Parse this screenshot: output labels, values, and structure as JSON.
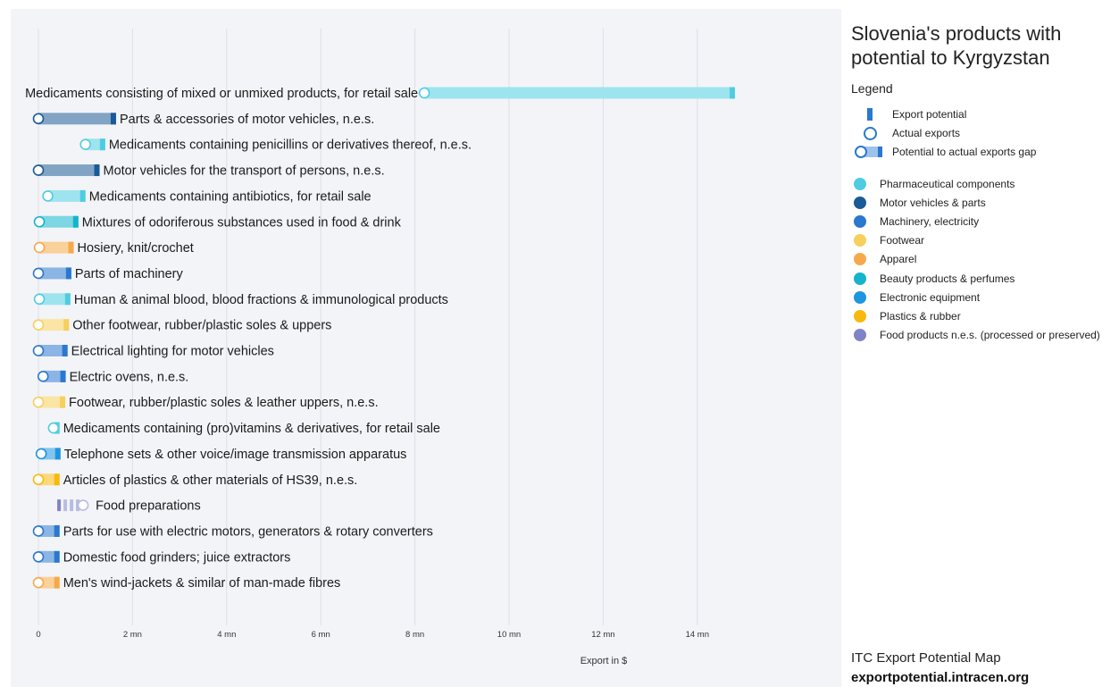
{
  "chart_data": {
    "type": "bar",
    "orientation": "horizontal",
    "title": "Slovenia's products with potential to Kyrgyzstan",
    "xlabel": "Export in $",
    "xlim": [
      0,
      16
    ],
    "xticks": [
      0,
      2,
      4,
      6,
      8,
      10,
      12,
      14
    ],
    "xtick_labels": [
      "0",
      "2 mn",
      "4 mn",
      "6 mn",
      "8 mn",
      "10 mn",
      "12 mn",
      "14 mn"
    ],
    "grid": true,
    "series": [
      {
        "name": "Export potential",
        "unit": "mn USD"
      },
      {
        "name": "Actual exports",
        "unit": "mn USD"
      }
    ],
    "rows": [
      {
        "label": "Medicaments consisting of mixed or unmixed products, for retail sale",
        "potential": 14.8,
        "actual": 8.2,
        "sector": "Pharmaceutical components"
      },
      {
        "label": "Parts & accessories of motor vehicles, n.e.s.",
        "potential": 1.65,
        "actual": 0.0,
        "sector": "Motor vehicles & parts"
      },
      {
        "label": "Medicaments containing penicillins or derivatives thereof, n.e.s.",
        "potential": 1.42,
        "actual": 1.0,
        "sector": "Pharmaceutical components"
      },
      {
        "label": "Motor vehicles for the transport of persons, n.e.s.",
        "potential": 1.3,
        "actual": 0.0,
        "sector": "Motor vehicles & parts"
      },
      {
        "label": "Medicaments containing antibiotics, for retail sale",
        "potential": 1.0,
        "actual": 0.2,
        "sector": "Pharmaceutical components"
      },
      {
        "label": "Mixtures of odoriferous substances used in food & drink",
        "potential": 0.85,
        "actual": 0.02,
        "sector": "Beauty products & perfumes"
      },
      {
        "label": "Hosiery, knit/crochet",
        "potential": 0.75,
        "actual": 0.02,
        "sector": "Apparel"
      },
      {
        "label": "Parts of machinery",
        "potential": 0.7,
        "actual": 0.0,
        "sector": "Machinery, electricity"
      },
      {
        "label": "Human & animal blood, blood fractions & immunological products",
        "potential": 0.68,
        "actual": 0.02,
        "sector": "Pharmaceutical components"
      },
      {
        "label": "Other footwear, rubber/plastic soles & uppers",
        "potential": 0.65,
        "actual": 0.0,
        "sector": "Footwear"
      },
      {
        "label": "Electrical lighting for motor vehicles",
        "potential": 0.62,
        "actual": 0.0,
        "sector": "Machinery, electricity"
      },
      {
        "label": "Electric ovens, n.e.s.",
        "potential": 0.58,
        "actual": 0.1,
        "sector": "Machinery, electricity"
      },
      {
        "label": "Footwear, rubber/plastic soles & leather uppers, n.e.s.",
        "potential": 0.57,
        "actual": 0.0,
        "sector": "Footwear"
      },
      {
        "label": "Medicaments containing (pro)vitamins & derivatives, for retail sale",
        "potential": 0.45,
        "actual": 0.32,
        "sector": "Pharmaceutical components"
      },
      {
        "label": "Telephone sets & other voice/image transmission apparatus",
        "potential": 0.47,
        "actual": 0.06,
        "sector": "Electronic equipment"
      },
      {
        "label": "Articles of plastics & other materials of HS39, n.e.s.",
        "potential": 0.45,
        "actual": 0.0,
        "sector": "Plastics & rubber"
      },
      {
        "label": "Food preparations",
        "potential": 0.4,
        "actual": 0.95,
        "sector": "Food products n.e.s. (processed or preserved)"
      },
      {
        "label": "Parts for use with electric motors, generators & rotary converters",
        "potential": 0.45,
        "actual": 0.0,
        "sector": "Machinery, electricity"
      },
      {
        "label": "Domestic food grinders; juice extractors",
        "potential": 0.45,
        "actual": 0.0,
        "sector": "Machinery, electricity"
      },
      {
        "label": "Men's wind-jackets & similar of man-made fibres",
        "potential": 0.45,
        "actual": 0.0,
        "sector": "Apparel"
      }
    ]
  },
  "sector_colors": {
    "Pharmaceutical components": "#4fcde0",
    "Motor vehicles & parts": "#1a5a96",
    "Machinery, electricity": "#2a78cf",
    "Footwear": "#f7cf5c",
    "Apparel": "#f6a94a",
    "Beauty products & perfumes": "#13b4cc",
    "Electronic equipment": "#1e95e0",
    "Plastics & rubber": "#f8b90c",
    "Food products n.e.s. (processed or preserved)": "#7f84c6"
  },
  "panel": {
    "title": "Slovenia's products with potential to Kyrgyzstan",
    "legend_title": "Legend",
    "key": [
      {
        "symbol": "export-potential-icon",
        "label": "Export potential"
      },
      {
        "symbol": "actual-exports-icon",
        "label": "Actual exports"
      },
      {
        "symbol": "gap-icon",
        "label": "Potential to actual exports gap"
      }
    ],
    "sectors": [
      {
        "label": "Pharmaceutical components",
        "color": "#4fcde0"
      },
      {
        "label": "Motor vehicles & parts",
        "color": "#1a5a96"
      },
      {
        "label": "Machinery, electricity",
        "color": "#2a78cf"
      },
      {
        "label": "Footwear",
        "color": "#f7cf5c"
      },
      {
        "label": "Apparel",
        "color": "#f6a94a"
      },
      {
        "label": "Beauty products & perfumes",
        "color": "#13b4cc"
      },
      {
        "label": "Electronic equipment",
        "color": "#1e95e0"
      },
      {
        "label": "Plastics & rubber",
        "color": "#f8b90c"
      },
      {
        "label": "Food products n.e.s. (processed or preserved)",
        "color": "#7f84c6"
      }
    ],
    "footer_line1": "ITC Export Potential Map",
    "footer_line2": "exportpotential.intracen.org"
  }
}
